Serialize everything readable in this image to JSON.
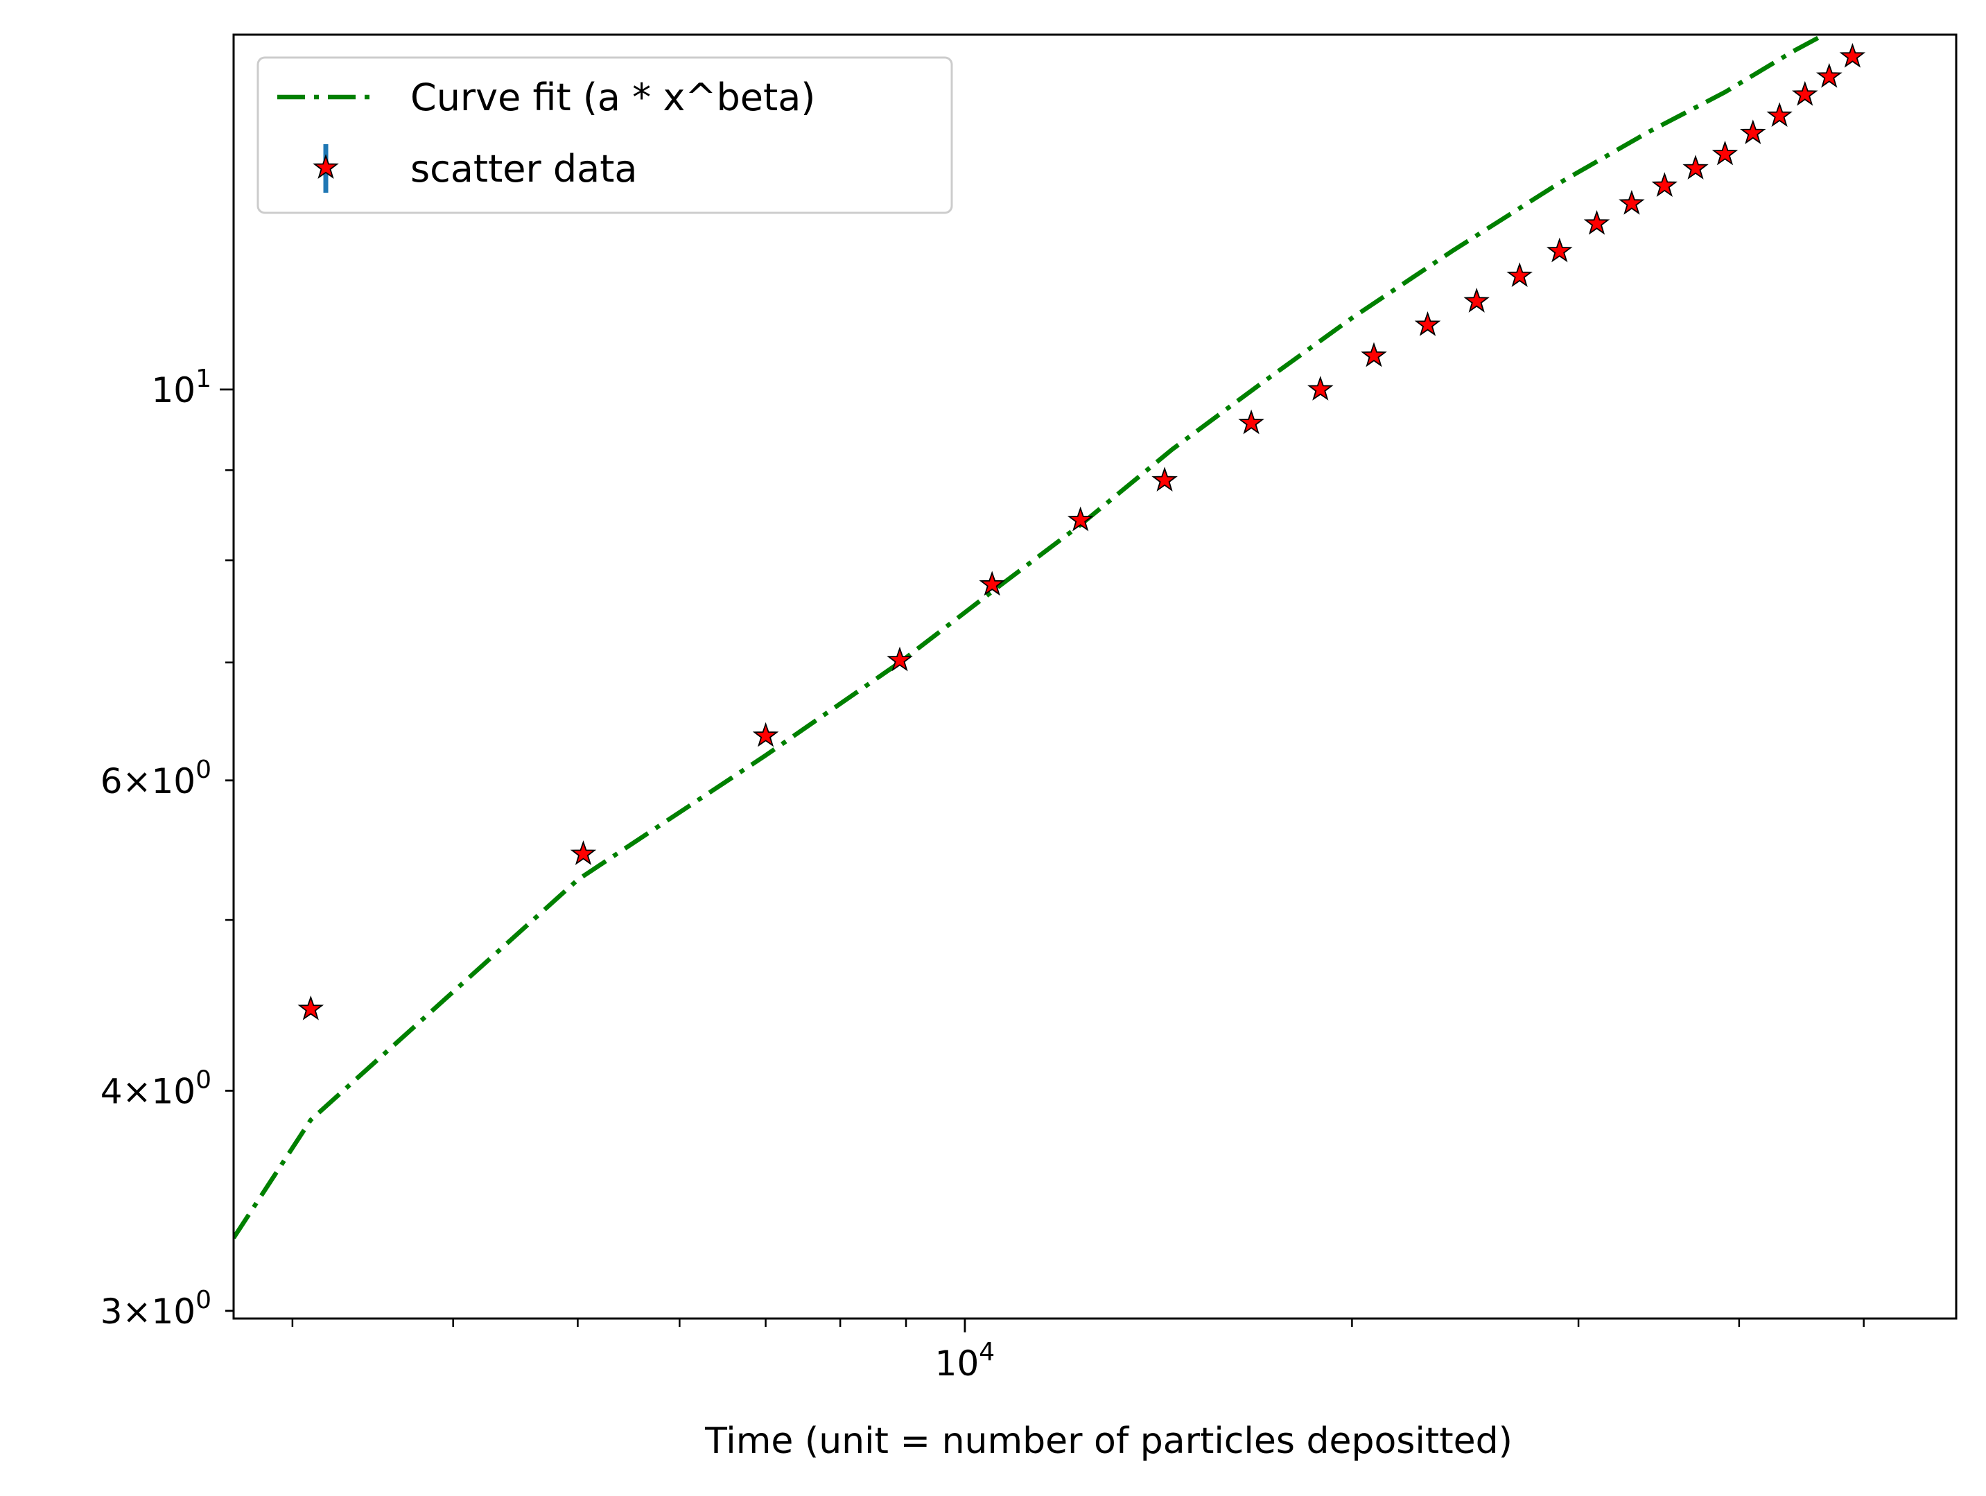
{
  "chart_data": {
    "type": "scatter",
    "title": "",
    "xlabel": "Time (unit = number of particles depositted)",
    "ylabel": "",
    "xscale": "log",
    "yscale": "log",
    "xlim": [
      2700,
      59000
    ],
    "ylim": [
      2.97,
      15.9
    ],
    "grid": false,
    "legend_position": "top-left",
    "colors": {
      "fit_line": "#008000",
      "marker_fill": "#ff0000",
      "marker_edge": "#000000",
      "errorbar": "#1f77b4"
    },
    "x_ticks": [
      {
        "value": 10000,
        "base": "10",
        "exp": "4"
      }
    ],
    "y_ticks": [
      {
        "value": 10,
        "mant": "",
        "base": "10",
        "exp": "1"
      },
      {
        "value": 6,
        "mant": "6",
        "base": "10",
        "exp": "0"
      },
      {
        "value": 4,
        "mant": "4",
        "base": "10",
        "exp": "0"
      },
      {
        "value": 3,
        "mant": "3",
        "base": "10",
        "exp": "0"
      }
    ],
    "series": [
      {
        "name": "Curve fit (a * x^beta)",
        "kind": "line",
        "style": "dashdot",
        "x": [
          2700,
          3100,
          5000,
          7000,
          8900,
          10500,
          12300,
          14500,
          17000,
          20000,
          24000,
          29000,
          34000,
          39000,
          44000,
          50000
        ],
        "y": [
          3.3,
          3.85,
          5.27,
          6.2,
          7.0,
          7.68,
          8.38,
          9.25,
          10.08,
          10.98,
          12.0,
          13.1,
          14.0,
          14.75,
          15.55,
          16.35
        ]
      },
      {
        "name": "scatter data",
        "kind": "scatter",
        "marker": "star",
        "x": [
          3100,
          5050,
          7000,
          8900,
          10500,
          12300,
          14300,
          16700,
          18900,
          20800,
          22900,
          25000,
          27000,
          29000,
          31000,
          33000,
          35000,
          37000,
          39000,
          41000,
          43000,
          45000,
          47000,
          49000
        ],
        "y": [
          4.45,
          5.45,
          6.36,
          7.02,
          7.75,
          8.43,
          8.88,
          9.57,
          10.0,
          10.45,
          10.88,
          11.22,
          11.6,
          11.98,
          12.42,
          12.75,
          13.05,
          13.35,
          13.6,
          13.98,
          14.3,
          14.7,
          15.05,
          15.45
        ]
      }
    ]
  }
}
